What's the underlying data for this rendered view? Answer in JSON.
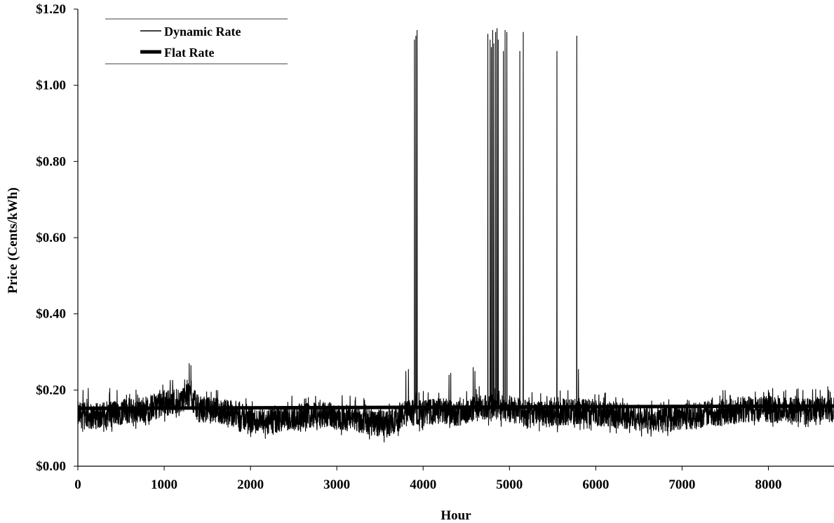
{
  "chart_data": {
    "type": "line",
    "title": "",
    "xlabel": "Hour",
    "ylabel": "Price (Cents/kWh)",
    "xlim": [
      0,
      8760
    ],
    "ylim": [
      0,
      1.2
    ],
    "x_ticks": [
      0,
      1000,
      2000,
      3000,
      4000,
      5000,
      6000,
      7000,
      8000
    ],
    "x_tick_labels": [
      "0",
      "1000",
      "2000",
      "3000",
      "4000",
      "5000",
      "6000",
      "7000",
      "8000"
    ],
    "y_ticks": [
      0,
      0.2,
      0.4,
      0.6,
      0.8,
      1.0,
      1.2
    ],
    "y_tick_labels": [
      "$0.00",
      "$0.20",
      "$0.40",
      "$0.60",
      "$0.80",
      "$1.00",
      "$1.20"
    ],
    "grid": false,
    "legend_position": "top-left",
    "colors": {
      "dynamic": "#000000",
      "flat": "#000000"
    },
    "series": [
      {
        "name": "Dynamic Rate",
        "style": "thin",
        "baseline": [
          [
            0,
            0.135
          ],
          [
            200,
            0.13
          ],
          [
            400,
            0.14
          ],
          [
            600,
            0.145
          ],
          [
            800,
            0.15
          ],
          [
            1000,
            0.165
          ],
          [
            1200,
            0.175
          ],
          [
            1300,
            0.185
          ],
          [
            1400,
            0.15
          ],
          [
            1600,
            0.145
          ],
          [
            1800,
            0.14
          ],
          [
            2000,
            0.12
          ],
          [
            2200,
            0.115
          ],
          [
            2400,
            0.125
          ],
          [
            2600,
            0.13
          ],
          [
            2800,
            0.14
          ],
          [
            3000,
            0.13
          ],
          [
            3200,
            0.125
          ],
          [
            3400,
            0.115
          ],
          [
            3600,
            0.11
          ],
          [
            3800,
            0.14
          ],
          [
            4000,
            0.14
          ],
          [
            4200,
            0.145
          ],
          [
            4400,
            0.14
          ],
          [
            4600,
            0.15
          ],
          [
            4800,
            0.155
          ],
          [
            5000,
            0.15
          ],
          [
            5200,
            0.14
          ],
          [
            5400,
            0.135
          ],
          [
            5600,
            0.14
          ],
          [
            5800,
            0.145
          ],
          [
            6000,
            0.14
          ],
          [
            6200,
            0.135
          ],
          [
            6400,
            0.13
          ],
          [
            6600,
            0.125
          ],
          [
            6800,
            0.125
          ],
          [
            7000,
            0.13
          ],
          [
            7200,
            0.135
          ],
          [
            7400,
            0.14
          ],
          [
            7600,
            0.145
          ],
          [
            7800,
            0.15
          ],
          [
            8000,
            0.15
          ],
          [
            8200,
            0.145
          ],
          [
            8400,
            0.15
          ],
          [
            8600,
            0.15
          ],
          [
            8760,
            0.15
          ]
        ],
        "spikes": [
          [
            60,
            0.2
          ],
          [
            120,
            0.205
          ],
          [
            370,
            0.205
          ],
          [
            600,
            0.19
          ],
          [
            950,
            0.2
          ],
          [
            1000,
            0.2
          ],
          [
            1290,
            0.27
          ],
          [
            1310,
            0.265
          ],
          [
            2850,
            0.165
          ],
          [
            3800,
            0.25
          ],
          [
            3830,
            0.255
          ],
          [
            3900,
            1.12
          ],
          [
            3915,
            1.13
          ],
          [
            3930,
            1.145
          ],
          [
            4300,
            0.24
          ],
          [
            4320,
            0.245
          ],
          [
            4580,
            0.26
          ],
          [
            4600,
            0.25
          ],
          [
            4750,
            1.135
          ],
          [
            4775,
            1.12
          ],
          [
            4790,
            1.1
          ],
          [
            4805,
            1.145
          ],
          [
            4820,
            1.11
          ],
          [
            4840,
            1.14
          ],
          [
            4855,
            1.15
          ],
          [
            4870,
            1.12
          ],
          [
            4930,
            1.09
          ],
          [
            4950,
            1.145
          ],
          [
            4970,
            1.14
          ],
          [
            5120,
            1.09
          ],
          [
            5160,
            1.14
          ],
          [
            5550,
            1.09
          ],
          [
            5780,
            1.13
          ],
          [
            5800,
            0.255
          ],
          [
            8000,
            0.2
          ],
          [
            8050,
            0.205
          ],
          [
            8200,
            0.2
          ],
          [
            8400,
            0.2
          ],
          [
            8600,
            0.2
          ],
          [
            8700,
            0.2
          ]
        ]
      },
      {
        "name": "Flat Rate",
        "style": "thick",
        "points": [
          [
            0,
            0.152
          ],
          [
            8760,
            0.158
          ]
        ]
      }
    ]
  }
}
